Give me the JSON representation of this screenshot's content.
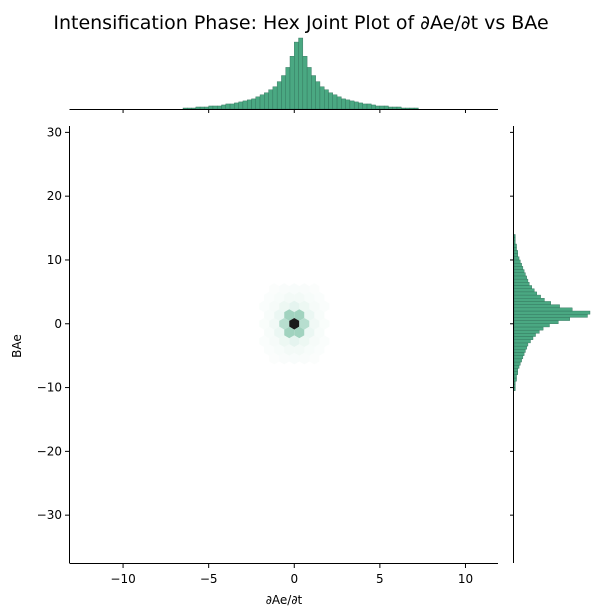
{
  "chart_data": {
    "type": "heatmap",
    "subtype": "hex-joint-plot",
    "title": "Intensification Phase: Hex Joint Plot of ∂Ae/∂t vs BAe",
    "xlabel": "∂Ae/∂t",
    "ylabel": "BAe",
    "xlim": [
      -13.1,
      11.9
    ],
    "ylim": [
      -37.5,
      31.0
    ],
    "x_ticks": [
      -10,
      -5,
      0,
      5,
      10
    ],
    "x_tick_labels": [
      "−10",
      "−5",
      "0",
      "5",
      "10"
    ],
    "y_ticks": [
      -30,
      -20,
      -10,
      0,
      10,
      20,
      30
    ],
    "y_tick_labels": [
      "−30",
      "−20",
      "−10",
      "0",
      "10",
      "20",
      "30"
    ],
    "grid": false,
    "colors": {
      "hex_dark": "#1a1a1a",
      "hex_mid": "#4aa882",
      "hex_light": "#e4f4ee",
      "marginal_fill": "#4aa882",
      "marginal_edge": "#2f6f58"
    },
    "joint_center": [
      0.0,
      0.0
    ],
    "joint_spread": {
      "x_scale": 0.9,
      "y_scale": 3.0
    },
    "marginal_x": {
      "bin_width": 0.25,
      "bin_start": -12.0,
      "counts": [
        0,
        0,
        0,
        0,
        0,
        0,
        0,
        0,
        0,
        0,
        0,
        0,
        0,
        0,
        0,
        0,
        0,
        0,
        0,
        0,
        0,
        0,
        1,
        1,
        1,
        2,
        2,
        2,
        3,
        3,
        3,
        4,
        5,
        5,
        6,
        7,
        8,
        9,
        10,
        12,
        14,
        16,
        19,
        22,
        27,
        33,
        41,
        52,
        66,
        70,
        52,
        41,
        33,
        27,
        22,
        19,
        16,
        14,
        12,
        10,
        9,
        8,
        7,
        6,
        5,
        5,
        4,
        3,
        3,
        3,
        2,
        2,
        2,
        1,
        1,
        1,
        1,
        0,
        0,
        0,
        0,
        0,
        0,
        0,
        0,
        0,
        0,
        0,
        0,
        0,
        0,
        0,
        0,
        0,
        0,
        0
      ]
    },
    "marginal_y": {
      "bin_width": 0.5,
      "bin_start": -12.0,
      "counts": [
        0,
        0,
        0,
        1,
        1,
        1,
        2,
        2,
        3,
        3,
        4,
        5,
        6,
        7,
        8,
        9,
        10,
        11,
        13,
        15,
        17,
        20,
        23,
        28,
        35,
        44,
        58,
        60,
        46,
        36,
        29,
        24,
        21,
        18,
        16,
        14,
        12,
        11,
        10,
        9,
        8,
        7,
        6,
        5,
        4,
        3,
        3,
        2,
        2,
        1,
        1,
        1,
        0,
        0
      ]
    }
  }
}
